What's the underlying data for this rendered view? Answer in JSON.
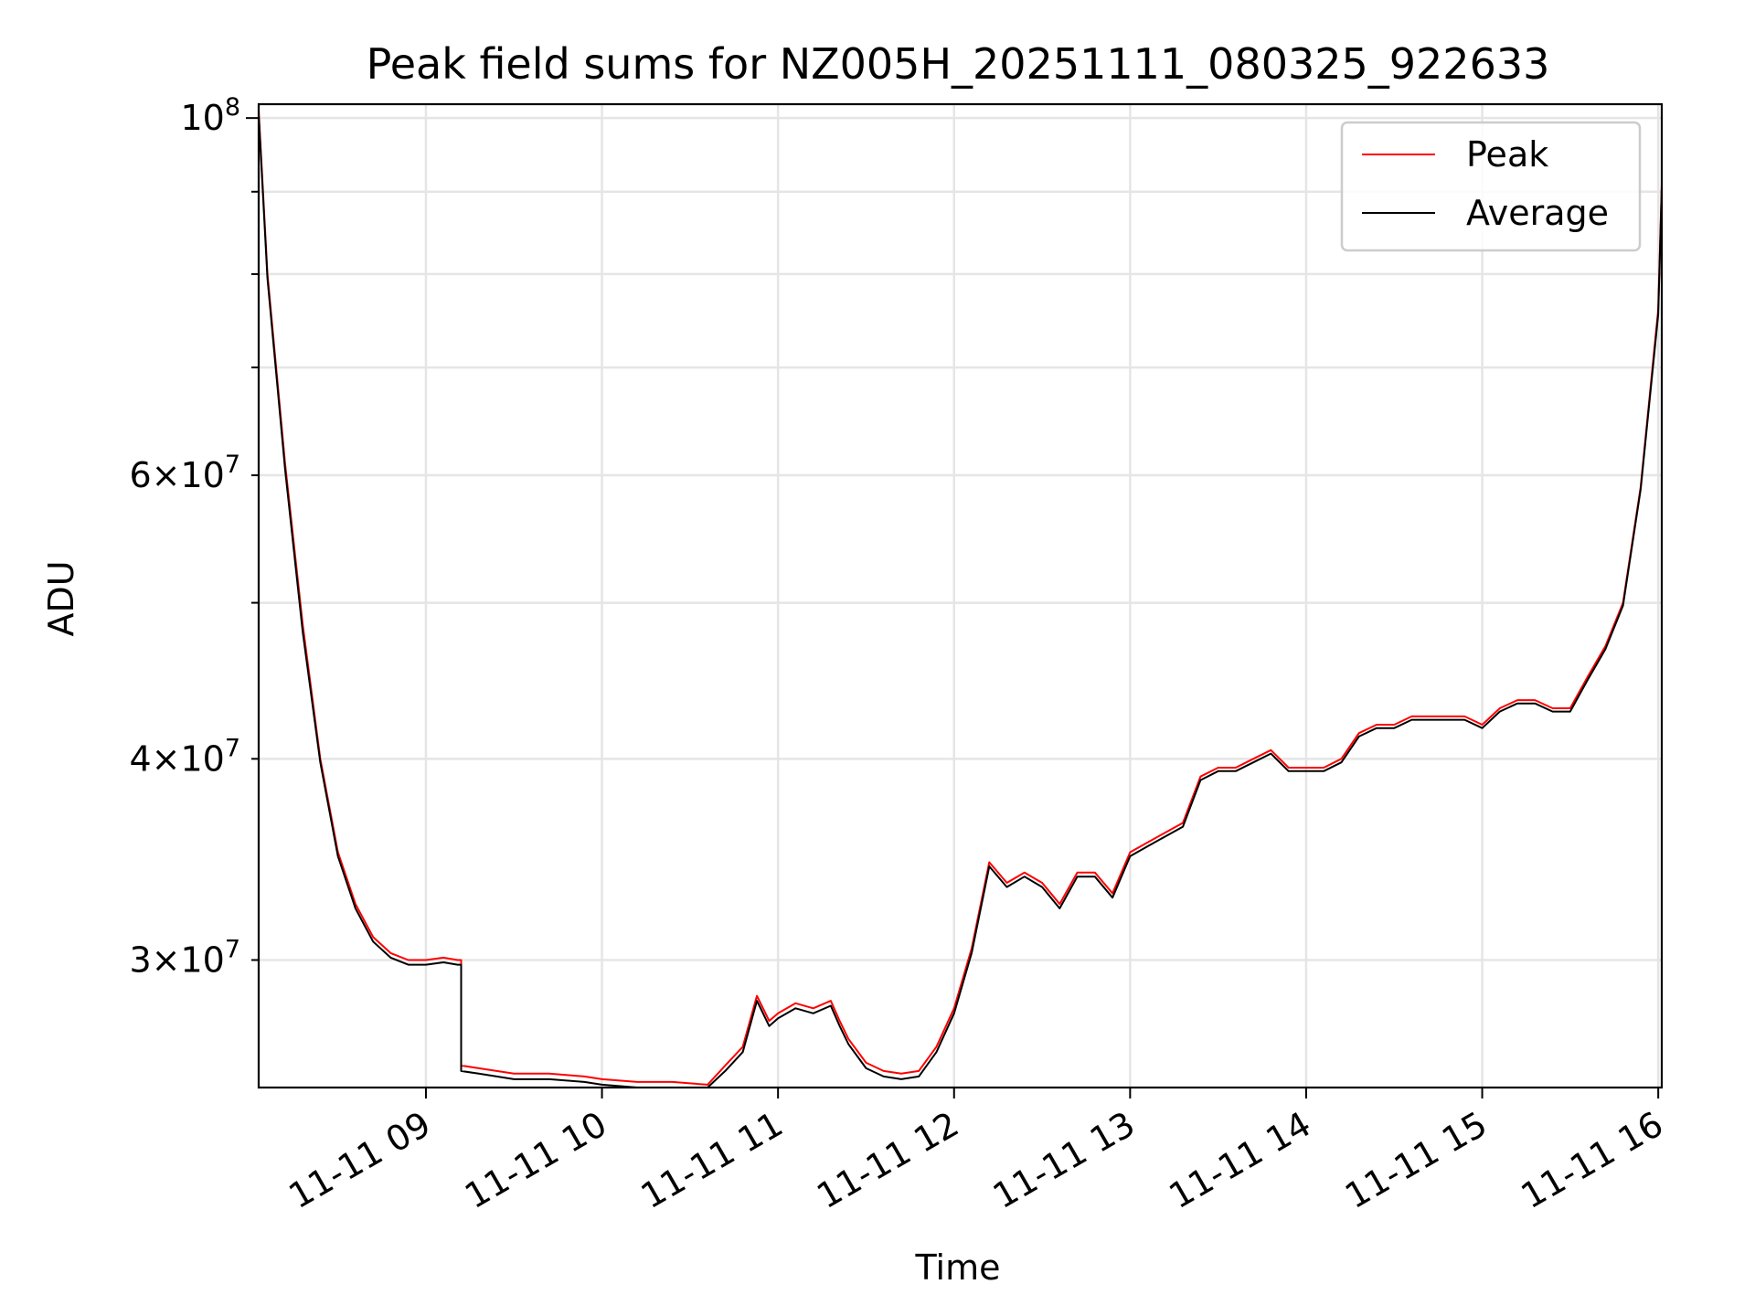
{
  "chart_data": {
    "type": "line",
    "title": "Peak field sums for NZ005H_20251111_080325_922633",
    "xlabel": "Time",
    "ylabel": "ADU",
    "yscale": "log",
    "xlim": [
      8.05,
      16.02
    ],
    "ylim": [
      25000000,
      102000000
    ],
    "grid": true,
    "legend_position": "top-right",
    "x_unit": "hours of 2025-11-11",
    "x_ticks": [
      9,
      10,
      11,
      12,
      13,
      14,
      15,
      16
    ],
    "x_tick_labels": [
      "11-11 09",
      "11-11 10",
      "11-11 11",
      "11-11 12",
      "11-11 13",
      "11-11 14",
      "11-11 15",
      "11-11 16"
    ],
    "y_major_ticks": [
      100000000
    ],
    "y_major_labels": [
      {
        "mantissa": "",
        "exponent": "8"
      }
    ],
    "y_minor_ticks": [
      30000000,
      40000000,
      50000000,
      60000000,
      70000000,
      80000000,
      90000000
    ],
    "y_minor_labels": [
      {
        "value": 30000000,
        "mantissa": "3",
        "exponent": "7"
      },
      {
        "value": 40000000,
        "mantissa": "4",
        "exponent": "7"
      },
      {
        "value": 60000000,
        "mantissa": "6",
        "exponent": "7"
      }
    ],
    "series": [
      {
        "name": "Peak",
        "color": "#ff0000",
        "x": [
          8.05,
          8.1,
          8.2,
          8.3,
          8.4,
          8.5,
          8.6,
          8.7,
          8.8,
          8.9,
          9.0,
          9.1,
          9.18,
          9.2,
          9.2,
          9.3,
          9.5,
          9.7,
          9.9,
          10.0,
          10.2,
          10.4,
          10.6,
          10.7,
          10.8,
          10.88,
          10.95,
          11.0,
          11.1,
          11.2,
          11.3,
          11.35,
          11.4,
          11.5,
          11.6,
          11.7,
          11.8,
          11.9,
          12.0,
          12.1,
          12.2,
          12.3,
          12.4,
          12.5,
          12.6,
          12.7,
          12.8,
          12.9,
          13.0,
          13.1,
          13.2,
          13.3,
          13.4,
          13.5,
          13.6,
          13.7,
          13.8,
          13.9,
          14.0,
          14.1,
          14.2,
          14.3,
          14.4,
          14.5,
          14.6,
          14.7,
          14.8,
          14.9,
          15.0,
          15.1,
          15.2,
          15.3,
          15.4,
          15.5,
          15.6,
          15.7,
          15.8,
          15.9,
          16.0,
          16.02
        ],
        "values": [
          101000000,
          80000000,
          61000000,
          48500000,
          40000000,
          35000000,
          32500000,
          31000000,
          30300000,
          30000000,
          30000000,
          30100000,
          30000000,
          30000000,
          25800000,
          25700000,
          25500000,
          25500000,
          25400000,
          25300000,
          25200000,
          25200000,
          25100000,
          25800000,
          26500000,
          28500000,
          27500000,
          27800000,
          28200000,
          28000000,
          28300000,
          27500000,
          26800000,
          25900000,
          25600000,
          25500000,
          25600000,
          26500000,
          28000000,
          30500000,
          34500000,
          33500000,
          34000000,
          33500000,
          32500000,
          34000000,
          34000000,
          33000000,
          35000000,
          35500000,
          36000000,
          36500000,
          39000000,
          39500000,
          39500000,
          40000000,
          40500000,
          39500000,
          39500000,
          39500000,
          40000000,
          41500000,
          42000000,
          42000000,
          42500000,
          42500000,
          42500000,
          42500000,
          42000000,
          43000000,
          43500000,
          43500000,
          43000000,
          43000000,
          45000000,
          47000000,
          50000000,
          59000000,
          76000000,
          91000000
        ]
      },
      {
        "name": "Average",
        "color": "#000000",
        "x": [
          8.05,
          8.1,
          8.2,
          8.3,
          8.4,
          8.5,
          8.6,
          8.7,
          8.8,
          8.9,
          9.0,
          9.1,
          9.18,
          9.2,
          9.2,
          9.3,
          9.5,
          9.7,
          9.9,
          10.0,
          10.2,
          10.4,
          10.6,
          10.7,
          10.8,
          10.88,
          10.95,
          11.0,
          11.1,
          11.2,
          11.3,
          11.35,
          11.4,
          11.5,
          11.6,
          11.7,
          11.8,
          11.9,
          12.0,
          12.1,
          12.2,
          12.3,
          12.4,
          12.5,
          12.6,
          12.7,
          12.8,
          12.9,
          13.0,
          13.1,
          13.2,
          13.3,
          13.4,
          13.5,
          13.6,
          13.7,
          13.8,
          13.9,
          14.0,
          14.1,
          14.2,
          14.3,
          14.4,
          14.5,
          14.6,
          14.7,
          14.8,
          14.9,
          15.0,
          15.1,
          15.2,
          15.3,
          15.4,
          15.5,
          15.6,
          15.7,
          15.8,
          15.9,
          16.0,
          16.02
        ],
        "values": [
          100500000,
          79500000,
          60500000,
          48000000,
          39800000,
          34800000,
          32300000,
          30800000,
          30100000,
          29800000,
          29800000,
          29900000,
          29800000,
          29800000,
          25600000,
          25500000,
          25300000,
          25300000,
          25200000,
          25100000,
          25000000,
          25000000,
          25000000,
          25600000,
          26300000,
          28300000,
          27300000,
          27600000,
          28000000,
          27800000,
          28100000,
          27300000,
          26600000,
          25700000,
          25400000,
          25300000,
          25400000,
          26300000,
          27800000,
          30300000,
          34300000,
          33300000,
          33800000,
          33300000,
          32300000,
          33800000,
          33800000,
          32800000,
          34800000,
          35300000,
          35800000,
          36300000,
          38800000,
          39300000,
          39300000,
          39800000,
          40300000,
          39300000,
          39300000,
          39300000,
          39800000,
          41300000,
          41800000,
          41800000,
          42300000,
          42300000,
          42300000,
          42300000,
          41800000,
          42800000,
          43300000,
          43300000,
          42800000,
          42800000,
          44800000,
          46800000,
          49800000,
          58800000,
          75500000,
          90500000
        ]
      }
    ]
  }
}
